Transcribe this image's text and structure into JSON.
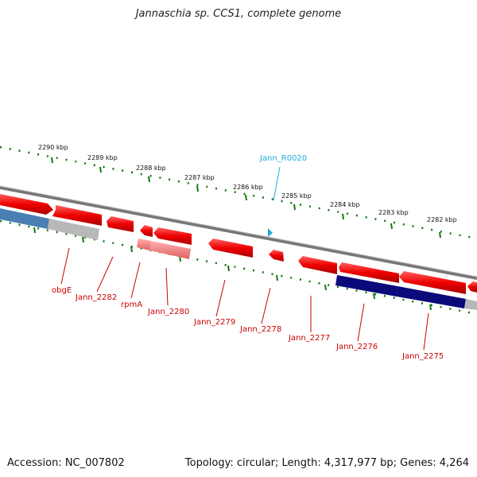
{
  "title": "Jannaschia sp. CCS1, complete genome",
  "footer": {
    "accession": "Accession: NC_007802",
    "summary": "Topology: circular; Length: 4,317,977 bp; Genes: 4,264"
  },
  "scale": {
    "unit": "kbp",
    "ticks": [
      {
        "kbp": 2290,
        "label": "2290 kbp"
      },
      {
        "kbp": 2289,
        "label": "2289 kbp"
      },
      {
        "kbp": 2288,
        "label": "2288 kbp"
      },
      {
        "kbp": 2287,
        "label": "2287 kbp"
      },
      {
        "kbp": 2286,
        "label": "2286 kbp"
      },
      {
        "kbp": 2285,
        "label": "2285 kbp"
      },
      {
        "kbp": 2284,
        "label": "2284 kbp"
      },
      {
        "kbp": 2283,
        "label": "2283 kbp"
      },
      {
        "kbp": 2282,
        "label": "2282 kbp"
      }
    ]
  },
  "features": {
    "rna": [
      {
        "label": "Jann_R0020"
      }
    ],
    "genes": [
      {
        "label": "obgE"
      },
      {
        "label": "Jann_2282"
      },
      {
        "label": "rpmA"
      },
      {
        "label": "Jann_2280"
      },
      {
        "label": "Jann_2279"
      },
      {
        "label": "Jann_2278"
      },
      {
        "label": "Jann_2277"
      },
      {
        "label": "Jann_2276"
      },
      {
        "label": "Jann_2275"
      }
    ]
  },
  "colors": {
    "backbone": "#888888",
    "gene": "#ee1111",
    "gene_light": "#f08080",
    "rna": "#22aadd",
    "scale_tick": "#117711",
    "band_blue": "#4a7fb5",
    "band_navy": "#0a0a7a",
    "band_gray": "#aaaaaa",
    "label_text": "#cc0000"
  }
}
